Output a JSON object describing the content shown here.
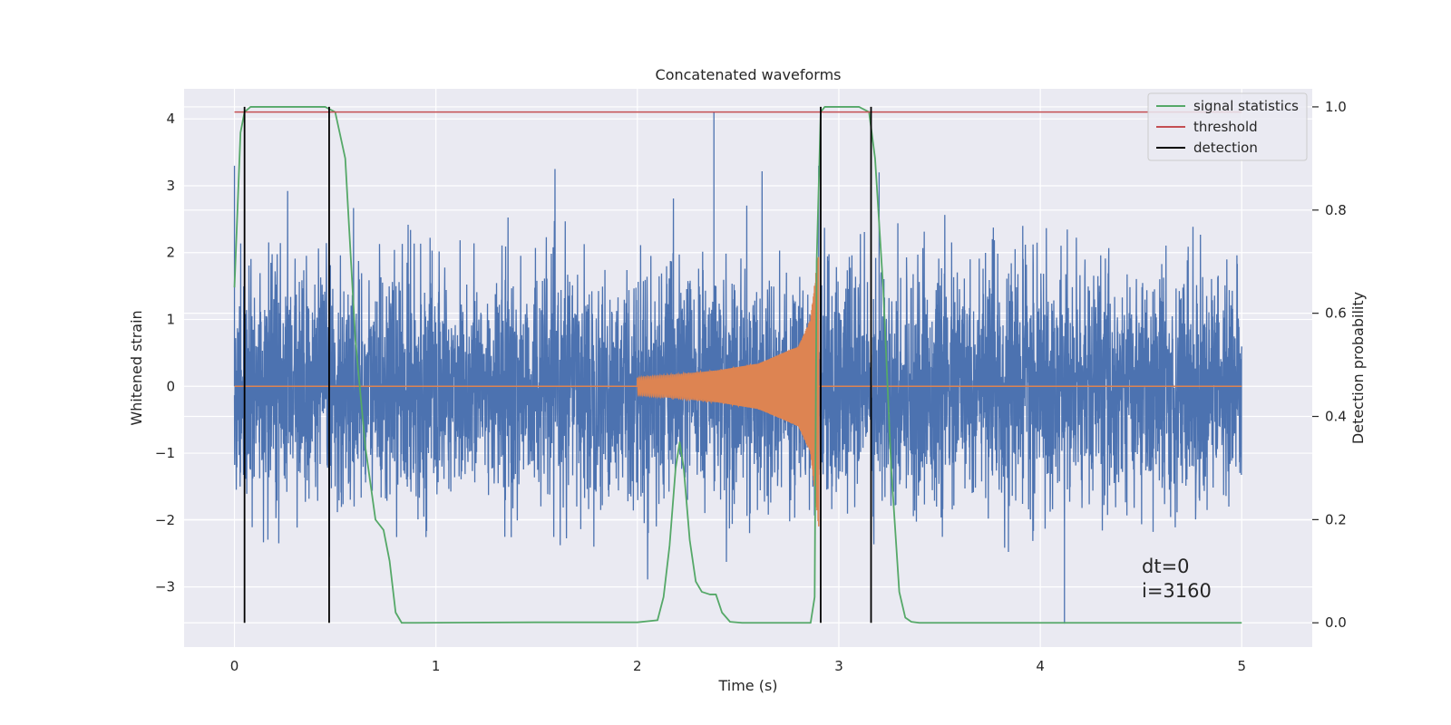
{
  "chart_data": {
    "type": "line",
    "title": "Concatenated waveforms",
    "xlabel": "Time (s)",
    "ylabel": "Whitened strain",
    "ylabel_right": "Detection probability",
    "xlim": [
      -0.25,
      5.35
    ],
    "ylim": [
      -3.9,
      4.45
    ],
    "ylim_right": [
      -0.047,
      1.035
    ],
    "xticks": [
      0,
      1,
      2,
      3,
      4,
      5
    ],
    "yticks": [
      -3,
      -2,
      -1,
      0,
      1,
      2,
      3,
      4
    ],
    "yticks_right": [
      0.0,
      0.2,
      0.4,
      0.6,
      0.8,
      1.0
    ],
    "xtick_labels": [
      "0",
      "1",
      "2",
      "3",
      "4",
      "5"
    ],
    "ytick_labels": [
      "−3",
      "−2",
      "−1",
      "0",
      "1",
      "2",
      "3",
      "4"
    ],
    "ytick_labels_right": [
      "0.0",
      "0.2",
      "0.4",
      "0.6",
      "0.8",
      "1.0"
    ],
    "grid": true,
    "legend_position": "top-right",
    "colors": {
      "strain": "#4c72b0",
      "injected": "#dd8452",
      "statistic": "#55a868",
      "threshold": "#c44e52",
      "detection": "#000000",
      "background": "#eaeaf2",
      "grid": "#ffffff"
    },
    "series": [
      {
        "name": "",
        "axis": "left",
        "description": "whitened noisy strain, sampled densely; envelope approx ±2.5 with spikes",
        "x_range": [
          0,
          5
        ],
        "envelope_upper": 2.3,
        "envelope_lower": -2.3,
        "notable_peaks": [
          [
            0.0,
            3.3
          ],
          [
            2.38,
            4.1
          ],
          [
            2.9,
            3.3
          ],
          [
            3.2,
            3.2
          ],
          [
            4.12,
            -3.55
          ]
        ]
      },
      {
        "name": "",
        "axis": "left",
        "description": "injected chirp waveform, zero outside 2.0–2.9 s",
        "x": [
          0,
          2.0,
          2.2,
          2.4,
          2.6,
          2.8,
          2.86,
          2.9,
          5
        ],
        "amplitude": [
          0,
          0.13,
          0.18,
          0.24,
          0.34,
          0.6,
          1.0,
          2.1,
          0
        ]
      },
      {
        "name": "signal statistics",
        "axis": "right",
        "x": [
          0.0,
          0.03,
          0.05,
          0.08,
          0.1,
          0.45,
          0.5,
          0.55,
          0.6,
          0.65,
          0.7,
          0.74,
          0.77,
          0.8,
          0.83,
          0.9,
          1.5,
          2.0,
          2.1,
          2.13,
          2.16,
          2.19,
          2.21,
          2.23,
          2.26,
          2.29,
          2.32,
          2.36,
          2.39,
          2.42,
          2.46,
          2.52,
          2.7,
          2.86,
          2.88,
          2.89,
          2.91,
          2.93,
          3.1,
          3.15,
          3.18,
          3.22,
          3.26,
          3.3,
          3.33,
          3.36,
          3.4,
          3.7,
          4.0,
          4.5,
          5.0
        ],
        "y": [
          0.65,
          0.95,
          0.99,
          1.0,
          1.0,
          1.0,
          0.99,
          0.9,
          0.55,
          0.34,
          0.2,
          0.18,
          0.12,
          0.02,
          0.0,
          0.0,
          0.001,
          0.001,
          0.005,
          0.05,
          0.15,
          0.3,
          0.35,
          0.3,
          0.16,
          0.08,
          0.06,
          0.055,
          0.055,
          0.02,
          0.002,
          0.0,
          0.0,
          0.0,
          0.05,
          0.7,
          0.99,
          1.0,
          1.0,
          0.99,
          0.9,
          0.65,
          0.3,
          0.06,
          0.01,
          0.002,
          0.0,
          0.0,
          0.0,
          0.0,
          0.0
        ]
      },
      {
        "name": "threshold",
        "axis": "right",
        "x": [
          0,
          5
        ],
        "y": [
          0.99,
          0.99
        ]
      },
      {
        "name": "detection",
        "axis": "right",
        "type": "vlines",
        "x": [
          0.05,
          0.47,
          2.91,
          3.16
        ]
      }
    ],
    "legend": [
      "signal statistics",
      "threshold",
      "detection"
    ],
    "annotations": [
      "dt=0",
      "i=3160"
    ]
  }
}
